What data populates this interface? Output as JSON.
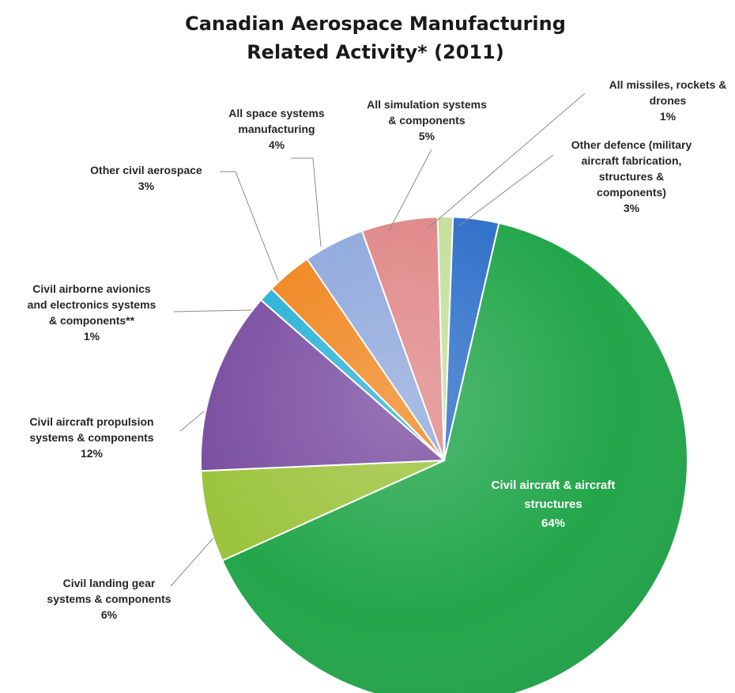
{
  "chart_data": {
    "type": "pie",
    "title_lines": [
      "Canadian Aerospace Manufacturing",
      "Related  Activity* (2011)"
    ],
    "start_angle_deg": 13,
    "slices": [
      {
        "label": [
          "Civil aircraft & aircraft",
          "structures",
          "64%"
        ],
        "value": 64,
        "color": "#22a64a"
      },
      {
        "label": [
          "Civil landing gear",
          "systems & components",
          "6%"
        ],
        "value": 6,
        "color": "#9cc43d"
      },
      {
        "label": [
          "Civil aircraft propulsion",
          "systems & components",
          "12%"
        ],
        "value": 12,
        "color": "#7a4ea1"
      },
      {
        "label": [
          "Civil airborne avionics",
          "and electronics systems",
          "& components**",
          "1%"
        ],
        "value": 1,
        "color": "#2ab2d6"
      },
      {
        "label": [
          "Other civil aerospace",
          "3%"
        ],
        "value": 3,
        "color": "#f0861f"
      },
      {
        "label": [
          "All space systems",
          "manufacturing",
          "4%"
        ],
        "value": 4,
        "color": "#8fa8dc"
      },
      {
        "label": [
          "All simulation systems",
          "& components",
          "5%"
        ],
        "value": 5,
        "color": "#e08787"
      },
      {
        "label": [
          "All missiles, rockets &",
          "drones",
          "1%"
        ],
        "value": 1,
        "color": "#c4df9b"
      },
      {
        "label": [
          "Other defence (military",
          "aircraft fabrication,",
          "structures &",
          "components)",
          "3%"
        ],
        "value": 3,
        "color": "#2e6fc9"
      }
    ]
  }
}
